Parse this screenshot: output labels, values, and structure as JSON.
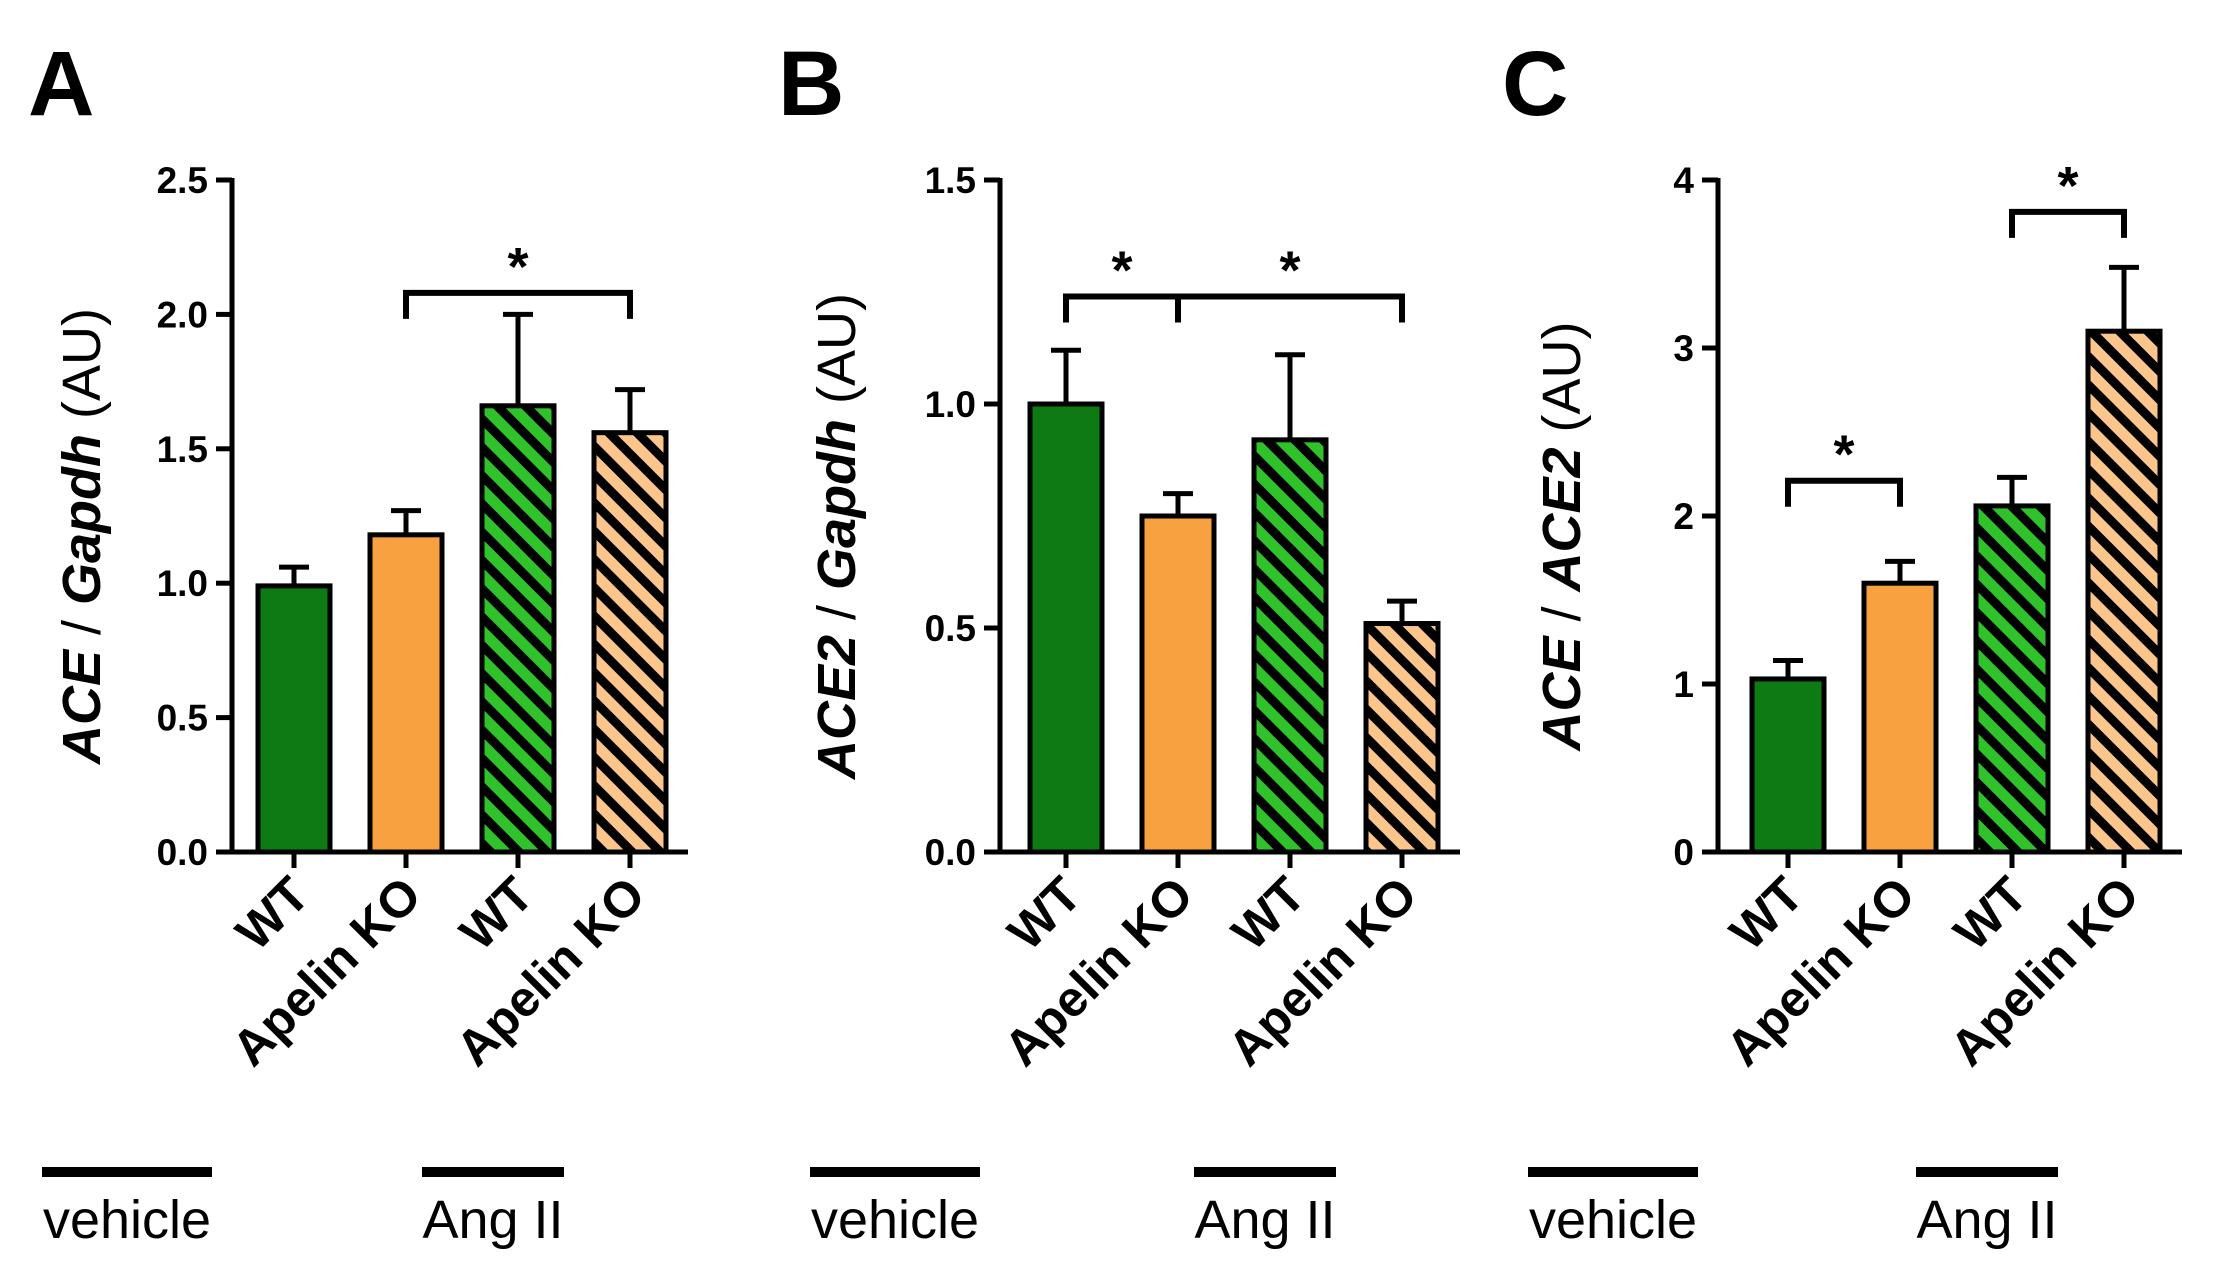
{
  "colors": {
    "wt": "#0e7a13",
    "ko": "#f7a140",
    "wt_hatch_bg": "#2fc22b",
    "ko_hatch_bg": "#fbc58c",
    "ink": "#000000"
  },
  "group_labels": [
    "vehicle",
    "Ang II"
  ],
  "chart_data": [
    {
      "type": "bar",
      "panel": "A",
      "ylabel_parts": [
        "ACE",
        " / ",
        "Gapdh",
        " (AU)"
      ],
      "categories": [
        "WT",
        "Apelin KO",
        "WT",
        "Apelin KO"
      ],
      "groups": [
        "vehicle",
        "vehicle",
        "Ang II",
        "Ang II"
      ],
      "values": [
        0.99,
        1.18,
        1.66,
        1.56
      ],
      "errors": [
        0.07,
        0.09,
        0.34,
        0.16
      ],
      "ylim": [
        0,
        2.5
      ],
      "yticks": [
        "0.0",
        "0.5",
        "1.0",
        "1.5",
        "2.0",
        "2.5"
      ],
      "significance": [
        {
          "from": 1,
          "to": 3,
          "y": 2.08,
          "label": "*"
        }
      ]
    },
    {
      "type": "bar",
      "panel": "B",
      "ylabel_parts": [
        "ACE2",
        "  / ",
        "Gapdh",
        " (AU)"
      ],
      "categories": [
        "WT",
        "Apelin KO",
        "WT",
        "Apelin KO"
      ],
      "groups": [
        "vehicle",
        "vehicle",
        "Ang II",
        "Ang II"
      ],
      "values": [
        1.0,
        0.75,
        0.92,
        0.51
      ],
      "errors": [
        0.12,
        0.05,
        0.19,
        0.05
      ],
      "ylim": [
        0,
        1.5
      ],
      "yticks": [
        "0.0",
        "0.5",
        "1.0",
        "1.5"
      ],
      "significance": [
        {
          "from": 0,
          "to": 1,
          "y": 1.24,
          "label": "*"
        },
        {
          "from": 1,
          "to": 3,
          "y": 1.24,
          "label": "*"
        }
      ]
    },
    {
      "type": "bar",
      "panel": "C",
      "ylabel_parts": [
        "ACE",
        "  / ",
        "ACE2",
        " (AU)"
      ],
      "categories": [
        "WT",
        "Apelin KO",
        "WT",
        "Apelin KO"
      ],
      "groups": [
        "vehicle",
        "vehicle",
        "Ang II",
        "Ang II"
      ],
      "values": [
        1.03,
        1.6,
        2.06,
        3.1
      ],
      "errors": [
        0.11,
        0.13,
        0.17,
        0.38
      ],
      "ylim": [
        0,
        4
      ],
      "yticks": [
        "0",
        "1",
        "2",
        "3",
        "4"
      ],
      "significance": [
        {
          "from": 0,
          "to": 1,
          "y": 2.21,
          "label": "*"
        },
        {
          "from": 2,
          "to": 3,
          "y": 3.81,
          "label": "*"
        }
      ]
    }
  ]
}
